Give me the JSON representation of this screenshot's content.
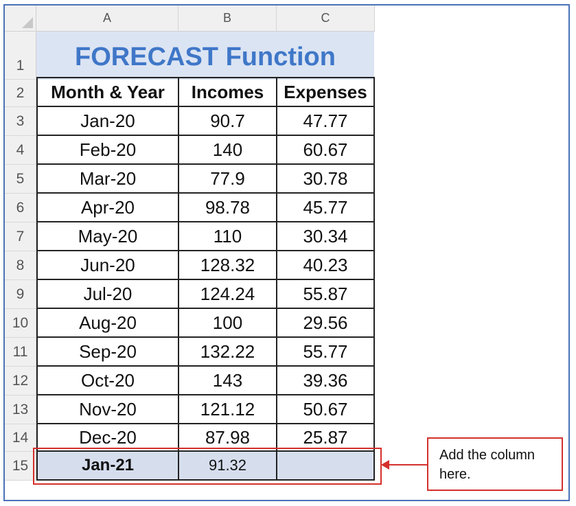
{
  "columns": [
    "A",
    "B",
    "C"
  ],
  "rows": [
    "1",
    "2",
    "3",
    "4",
    "5",
    "6",
    "7",
    "8",
    "9",
    "10",
    "11",
    "12",
    "13",
    "14",
    "15"
  ],
  "title": "FORECAST Function",
  "headers": [
    "Month & Year",
    "Incomes",
    "Expenses"
  ],
  "data": [
    [
      "Jan-20",
      "90.7",
      "47.77"
    ],
    [
      "Feb-20",
      "140",
      "60.67"
    ],
    [
      "Mar-20",
      "77.9",
      "30.78"
    ],
    [
      "Apr-20",
      "98.78",
      "45.77"
    ],
    [
      "May-20",
      "110",
      "30.34"
    ],
    [
      "Jun-20",
      "128.32",
      "40.23"
    ],
    [
      "Jul-20",
      "124.24",
      "55.87"
    ],
    [
      "Aug-20",
      "100",
      "29.56"
    ],
    [
      "Sep-20",
      "132.22",
      "55.77"
    ],
    [
      "Oct-20",
      "143",
      "39.36"
    ],
    [
      "Nov-20",
      "121.12",
      "50.67"
    ],
    [
      "Dec-20",
      "87.98",
      "25.87"
    ]
  ],
  "forecast_row": [
    "Jan-21",
    "91.32",
    ""
  ],
  "callout": {
    "line1": "Add the column",
    "line2": "here."
  },
  "colors": {
    "title": "#3f77c8",
    "title_bg": "#dbe4f3",
    "highlight": "#d4302c",
    "frame": "#4a71b8"
  }
}
